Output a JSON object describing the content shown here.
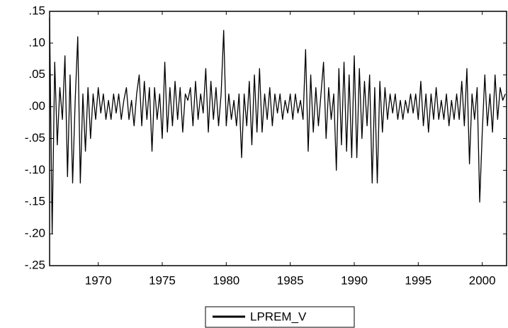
{
  "chart_data": {
    "type": "line",
    "x": [
      1966.2,
      1966.4,
      1966.6,
      1966.8,
      1967.0,
      1967.2,
      1967.4,
      1967.6,
      1967.8,
      1968.0,
      1968.2,
      1968.4,
      1968.6,
      1968.8,
      1969.0,
      1969.2,
      1969.4,
      1969.6,
      1969.8,
      1970.0,
      1970.2,
      1970.4,
      1970.6,
      1970.8,
      1971.0,
      1971.2,
      1971.4,
      1971.6,
      1971.8,
      1972.0,
      1972.2,
      1972.4,
      1972.6,
      1972.8,
      1973.0,
      1973.2,
      1973.4,
      1973.6,
      1973.8,
      1974.0,
      1974.2,
      1974.4,
      1974.6,
      1974.8,
      1975.0,
      1975.2,
      1975.4,
      1975.6,
      1975.8,
      1976.0,
      1976.2,
      1976.4,
      1976.6,
      1976.8,
      1977.0,
      1977.2,
      1977.4,
      1977.6,
      1977.8,
      1978.0,
      1978.2,
      1978.4,
      1978.6,
      1978.8,
      1979.0,
      1979.2,
      1979.4,
      1979.6,
      1979.8,
      1980.0,
      1980.2,
      1980.4,
      1980.6,
      1980.8,
      1981.0,
      1981.2,
      1981.4,
      1981.6,
      1981.8,
      1982.0,
      1982.2,
      1982.4,
      1982.6,
      1982.8,
      1983.0,
      1983.2,
      1983.4,
      1983.6,
      1983.8,
      1984.0,
      1984.2,
      1984.4,
      1984.6,
      1984.8,
      1985.0,
      1985.2,
      1985.4,
      1985.6,
      1985.8,
      1986.0,
      1986.2,
      1986.4,
      1986.6,
      1986.8,
      1987.0,
      1987.2,
      1987.4,
      1987.6,
      1987.8,
      1988.0,
      1988.2,
      1988.4,
      1988.6,
      1988.8,
      1989.0,
      1989.2,
      1989.4,
      1989.6,
      1989.8,
      1990.0,
      1990.2,
      1990.4,
      1990.6,
      1990.8,
      1991.0,
      1991.2,
      1991.4,
      1991.6,
      1991.8,
      1992.0,
      1992.2,
      1992.4,
      1992.6,
      1992.8,
      1993.0,
      1993.2,
      1993.4,
      1993.6,
      1993.8,
      1994.0,
      1994.2,
      1994.4,
      1994.6,
      1994.8,
      1995.0,
      1995.2,
      1995.4,
      1995.6,
      1995.8,
      1996.0,
      1996.2,
      1996.4,
      1996.6,
      1996.8,
      1997.0,
      1997.2,
      1997.4,
      1997.6,
      1997.8,
      1998.0,
      1998.2,
      1998.4,
      1998.6,
      1998.8,
      1999.0,
      1999.2,
      1999.4,
      1999.6,
      1999.8,
      2000.0,
      2000.2,
      2000.4,
      2000.6,
      2000.8,
      2001.0,
      2001.2,
      2001.4,
      2001.6,
      2001.8
    ],
    "series": [
      {
        "name": "LPREM_V",
        "color": "#000000",
        "values": [
          0.14,
          -0.2,
          0.07,
          -0.06,
          0.03,
          -0.02,
          0.08,
          -0.11,
          0.05,
          -0.12,
          0.01,
          0.11,
          -0.12,
          0.02,
          -0.07,
          0.03,
          -0.05,
          0.02,
          -0.02,
          0.03,
          -0.01,
          0.02,
          -0.02,
          0.01,
          -0.02,
          0.02,
          -0.01,
          0.02,
          -0.02,
          0.01,
          0.03,
          -0.02,
          0.01,
          -0.03,
          0.02,
          0.05,
          -0.03,
          0.04,
          -0.02,
          0.03,
          -0.07,
          0.03,
          -0.02,
          0.02,
          -0.05,
          0.07,
          -0.04,
          0.03,
          -0.03,
          0.04,
          -0.02,
          0.03,
          -0.04,
          0.02,
          0.01,
          0.03,
          -0.03,
          0.04,
          -0.02,
          0.02,
          -0.01,
          0.06,
          -0.04,
          0.04,
          -0.02,
          0.03,
          -0.03,
          0.02,
          0.12,
          -0.03,
          0.02,
          -0.02,
          0.01,
          -0.03,
          0.02,
          -0.08,
          0.02,
          -0.03,
          0.04,
          -0.06,
          0.05,
          -0.04,
          0.06,
          -0.04,
          0.02,
          -0.02,
          0.03,
          -0.03,
          0.02,
          -0.01,
          0.02,
          -0.02,
          0.01,
          -0.01,
          0.02,
          -0.02,
          0.02,
          -0.01,
          0.01,
          -0.02,
          0.09,
          -0.07,
          0.05,
          -0.04,
          0.03,
          -0.03,
          0.02,
          0.07,
          -0.05,
          0.03,
          -0.02,
          0.02,
          -0.1,
          0.06,
          -0.06,
          0.07,
          -0.07,
          0.05,
          -0.08,
          0.08,
          -0.08,
          0.06,
          -0.05,
          0.04,
          -0.03,
          0.05,
          -0.12,
          0.03,
          -0.12,
          0.04,
          -0.04,
          0.03,
          -0.02,
          0.02,
          -0.01,
          0.02,
          -0.02,
          0.01,
          -0.02,
          0.01,
          -0.01,
          0.02,
          -0.01,
          0.02,
          -0.02,
          0.04,
          -0.03,
          0.02,
          -0.04,
          0.02,
          -0.02,
          0.03,
          -0.02,
          0.01,
          -0.02,
          0.02,
          -0.03,
          0.01,
          -0.02,
          0.02,
          -0.02,
          0.04,
          -0.03,
          0.06,
          -0.09,
          0.02,
          -0.02,
          0.03,
          -0.15,
          -0.04,
          0.05,
          -0.03,
          0.02,
          -0.04,
          0.05,
          -0.02,
          0.03,
          0.01,
          0.02
        ]
      }
    ],
    "xlim": [
      1966.2,
      2001.9
    ],
    "xticks": [
      1970,
      1975,
      1980,
      1985,
      1990,
      1995,
      2000
    ],
    "ylim": [
      -0.25,
      0.15
    ],
    "yticks": [
      {
        "value": -0.25,
        "label": "-.25"
      },
      {
        "value": -0.2,
        "label": "-.20"
      },
      {
        "value": -0.15,
        "label": "-.15"
      },
      {
        "value": -0.1,
        "label": "-.10"
      },
      {
        "value": -0.05,
        "label": "-.05"
      },
      {
        "value": 0,
        "label": ".00"
      },
      {
        "value": 0.05,
        "label": ".05"
      },
      {
        "value": 0.1,
        "label": ".10"
      },
      {
        "value": 0.15,
        "label": ".15"
      }
    ],
    "grid": false
  }
}
